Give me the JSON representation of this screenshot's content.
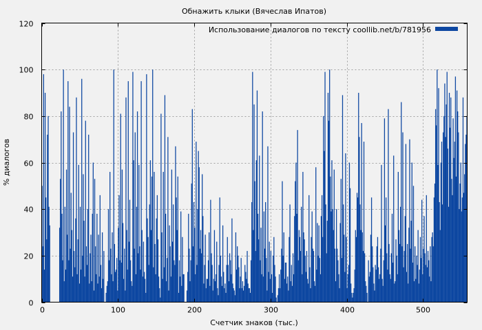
{
  "chart_data": {
    "type": "bar",
    "title": "Обнажить клыки (Вячеслав Ипатов)",
    "xlabel": "Счетчик знаков (тыс.)",
    "ylabel": "% диалогов",
    "xlim": [
      0,
      558
    ],
    "ylim": [
      0,
      120
    ],
    "x_ticks": [
      0,
      100,
      200,
      300,
      400,
      500
    ],
    "y_ticks": [
      0,
      20,
      40,
      60,
      80,
      100,
      120
    ],
    "grid": true,
    "legend_position": "top-right",
    "bar_color": "#0d47a1",
    "series": [
      {
        "name": "Использование диалогов по тексту coollib.net/b/781956",
        "x_start": 0,
        "x_step": 1,
        "values": [
          50,
          24,
          98,
          14,
          90,
          45,
          27,
          72,
          80,
          41,
          33,
          0,
          0,
          0,
          0,
          0,
          0,
          0,
          0,
          0,
          0,
          0,
          0,
          32,
          53,
          82,
          38,
          18,
          100,
          9,
          41,
          14,
          57,
          29,
          95,
          18,
          84,
          23,
          47,
          31,
          11,
          73,
          22,
          15,
          36,
          88,
          12,
          27,
          59,
          8,
          41,
          14,
          96,
          20,
          55,
          35,
          11,
          78,
          24,
          16,
          40,
          72,
          8,
          21,
          29,
          9,
          38,
          60,
          5,
          53,
          24,
          12,
          38,
          8,
          29,
          11,
          46,
          16,
          6,
          30,
          10,
          22,
          0,
          0,
          4,
          7,
          9,
          40,
          18,
          56,
          23,
          12,
          30,
          9,
          100,
          25,
          13,
          14,
          19,
          5,
          32,
          46,
          18,
          81,
          17,
          57,
          34,
          10,
          23,
          5,
          88,
          31,
          14,
          95,
          26,
          44,
          18,
          9,
          7,
          99,
          61,
          23,
          73,
          12,
          41,
          82,
          21,
          59,
          24,
          14,
          95,
          31,
          11,
          26,
          13,
          10,
          4,
          98,
          36,
          28,
          16,
          42,
          61,
          31,
          54,
          100,
          15,
          56,
          25,
          12,
          36,
          46,
          27,
          11,
          6,
          2,
          81,
          30,
          10,
          56,
          15,
          89,
          38,
          9,
          19,
          71,
          5,
          33,
          24,
          11,
          57,
          26,
          42,
          18,
          16,
          67,
          45,
          31,
          54,
          4,
          18,
          11,
          39,
          7,
          28,
          12,
          12,
          0,
          0,
          0,
          5,
          13,
          38,
          23,
          9,
          18,
          51,
          83,
          24,
          43,
          32,
          12,
          69,
          16,
          40,
          65,
          58,
          23,
          31,
          21,
          55,
          37,
          8,
          16,
          29,
          6,
          10,
          10,
          18,
          30,
          7,
          44,
          21,
          16,
          5,
          10,
          31,
          9,
          12,
          26,
          6,
          3,
          16,
          45,
          20,
          11,
          7,
          33,
          13,
          6,
          8,
          4,
          16,
          28,
          16,
          9,
          21,
          18,
          12,
          36,
          8,
          6,
          5,
          3,
          30,
          14,
          24,
          20,
          15,
          6,
          11,
          19,
          6,
          9,
          5,
          7,
          16,
          13,
          10,
          22,
          8,
          6,
          6,
          4,
          18,
          43,
          99,
          31,
          85,
          52,
          22,
          61,
          91,
          38,
          27,
          63,
          18,
          32,
          12,
          82,
          11,
          39,
          23,
          43,
          19,
          5,
          67,
          13,
          26,
          10,
          22,
          12,
          4,
          20,
          28,
          16,
          11,
          2,
          0,
          3,
          6,
          12,
          6,
          14,
          23,
          52,
          20,
          30,
          10,
          17,
          17,
          8,
          11,
          5,
          28,
          42,
          9,
          16,
          7,
          21,
          12,
          37,
          52,
          60,
          38,
          74,
          18,
          31,
          28,
          22,
          41,
          12,
          56,
          30,
          27,
          20,
          13,
          22,
          10,
          8,
          46,
          15,
          6,
          28,
          39,
          23,
          22,
          9,
          7,
          58,
          14,
          34,
          20,
          33,
          19,
          12,
          37,
          46,
          28,
          80,
          65,
          99,
          42,
          21,
          35,
          90,
          78,
          100,
          54,
          39,
          61,
          40,
          31,
          57,
          23,
          9,
          40,
          23,
          18,
          12,
          6,
          34,
          53,
          19,
          89,
          42,
          29,
          13,
          64,
          28,
          6,
          12,
          16,
          60,
          49,
          8,
          4,
          2,
          4,
          6,
          14,
          31,
          28,
          47,
          45,
          90,
          71,
          42,
          31,
          77,
          30,
          22,
          69,
          21,
          9,
          7,
          4,
          0,
          18,
          11,
          13,
          29,
          45,
          24,
          15,
          8,
          5,
          16,
          14,
          24,
          28,
          15,
          10,
          12,
          23,
          59,
          10,
          7,
          18,
          79,
          33,
          45,
          21,
          14,
          83,
          25,
          12,
          10,
          21,
          38,
          17,
          63,
          8,
          9,
          27,
          20,
          12,
          56,
          31,
          25,
          41,
          86,
          24,
          73,
          15,
          22,
          37,
          68,
          13,
          25,
          8,
          32,
          70,
          23,
          35,
          60,
          17,
          50,
          9,
          24,
          10,
          20,
          16,
          31,
          8,
          14,
          28,
          19,
          44,
          12,
          23,
          37,
          21,
          16,
          46,
          15,
          22,
          18,
          11,
          24,
          9,
          28,
          30,
          24,
          45,
          51,
          83,
          76,
          100,
          59,
          92,
          43,
          31,
          60,
          69,
          42,
          73,
          80,
          94,
          71,
          85,
          99,
          66,
          41,
          90,
          75,
          88,
          53,
          46,
          79,
          62,
          69,
          97,
          54,
          91,
          82,
          73,
          40,
          51,
          60,
          39,
          45,
          88,
          47,
          55,
          68,
          72,
          80
        ]
      }
    ]
  }
}
